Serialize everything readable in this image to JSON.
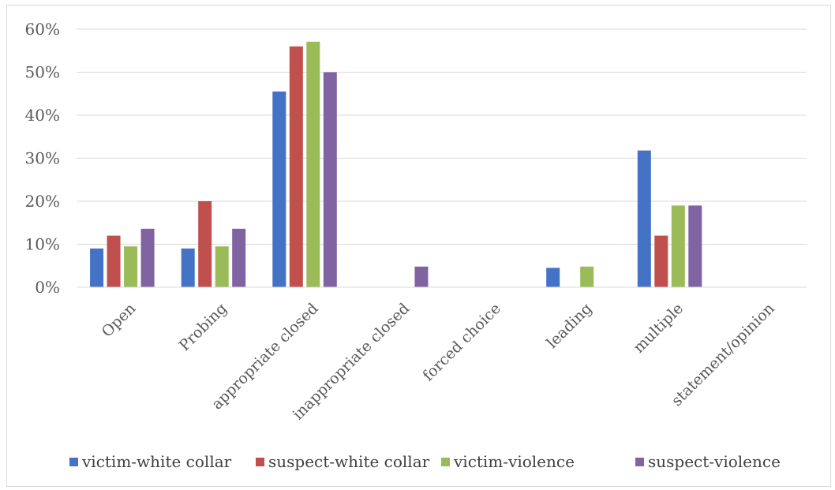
{
  "chart_data": {
    "type": "bar",
    "title": "",
    "xlabel": "",
    "ylabel": "",
    "ylim": [
      0,
      0.6
    ],
    "y_ticks": [
      0,
      0.1,
      0.2,
      0.3,
      0.4,
      0.5,
      0.6
    ],
    "y_tick_labels": [
      "0%",
      "10%",
      "20%",
      "30%",
      "40%",
      "50%",
      "60%"
    ],
    "grid": "horizontal",
    "legend_position": "bottom",
    "categories": [
      "Open",
      "Probing",
      "appropriate closed",
      "inappropriate closed",
      "forced choice",
      "leading",
      "multiple",
      "statement/opinion"
    ],
    "series": [
      {
        "name": "victim-white collar",
        "color": "#4472c4",
        "values": [
          0.09,
          0.09,
          0.455,
          0,
          0,
          0.045,
          0.318,
          0
        ]
      },
      {
        "name": "suspect-white collar",
        "color": "#c0504d",
        "values": [
          0.12,
          0.2,
          0.56,
          0,
          0,
          0,
          0.12,
          0
        ]
      },
      {
        "name": "victim-violence",
        "color": "#9bbb59",
        "values": [
          0.095,
          0.095,
          0.571,
          0,
          0,
          0.048,
          0.19,
          0
        ]
      },
      {
        "name": "suspect-violence",
        "color": "#8064a2",
        "values": [
          0.136,
          0.136,
          0.5,
          0.048,
          0,
          0,
          0.19,
          0
        ]
      }
    ]
  }
}
